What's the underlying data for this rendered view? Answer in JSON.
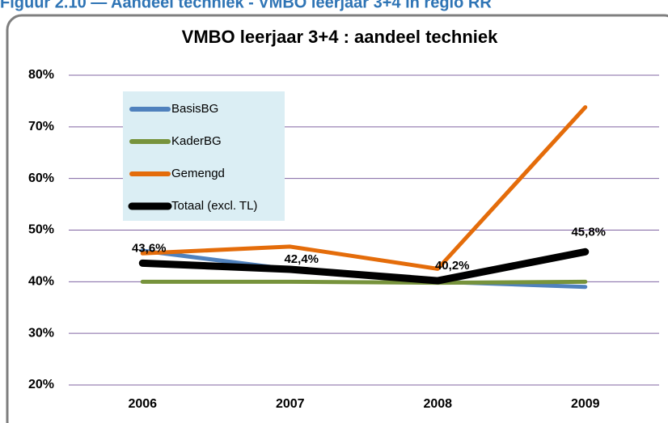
{
  "header": {
    "title": "Figuur 2.10 — Aandeel techniek - VMBO leerjaar 3+4 in regio RR"
  },
  "chart_data": {
    "type": "line",
    "title": "VMBO leerjaar 3+4 : aandeel techniek",
    "categories": [
      "2006",
      "2007",
      "2008",
      "2009"
    ],
    "series": [
      {
        "name": "BasisBG",
        "color": "#4f81bd",
        "values": [
          46.0,
          42.4,
          40.0,
          39.0
        ]
      },
      {
        "name": "KaderBG",
        "color": "#77933c",
        "values": [
          40.0,
          40.0,
          39.8,
          40.0
        ]
      },
      {
        "name": "Gemengd",
        "color": "#e46c0a",
        "values": [
          45.5,
          46.8,
          42.5,
          73.8
        ]
      },
      {
        "name": "Totaal (excl. TL)",
        "color": "#000000",
        "values": [
          43.6,
          42.4,
          40.2,
          45.8
        ],
        "value_labels": [
          "43,6%",
          "42,4%",
          "40,2%",
          "45,8%"
        ]
      }
    ],
    "ylim": [
      20,
      80
    ],
    "yticks": [
      {
        "value": 20,
        "label": "20%"
      },
      {
        "value": 30,
        "label": "30%"
      },
      {
        "value": 40,
        "label": "40%"
      },
      {
        "value": 50,
        "label": "50%"
      },
      {
        "value": 60,
        "label": "60%"
      },
      {
        "value": 70,
        "label": "70%"
      },
      {
        "value": 80,
        "label": "80%"
      }
    ],
    "grid": true,
    "legend": "upper left"
  }
}
